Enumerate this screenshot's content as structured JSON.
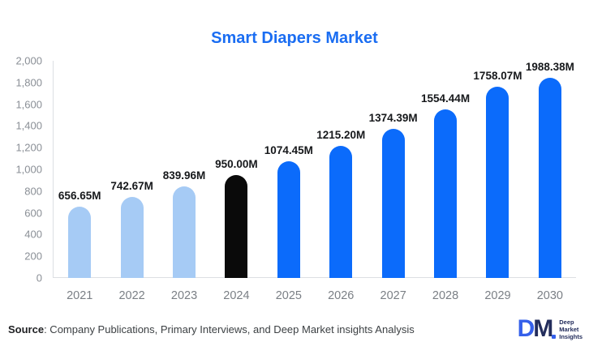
{
  "chart_data": {
    "type": "bar",
    "title": "Smart Diapers Market",
    "categories": [
      "2021",
      "2022",
      "2023",
      "2024",
      "2025",
      "2026",
      "2027",
      "2028",
      "2029",
      "2030"
    ],
    "values": [
      656.65,
      742.67,
      839.96,
      950.0,
      1074.45,
      1215.2,
      1374.39,
      1554.44,
      1758.07,
      1988.38
    ],
    "labels": [
      "656.65M",
      "742.67M",
      "839.96M",
      "950.00M",
      "1074.45M",
      "1215.20M",
      "1374.39M",
      "1554.44M",
      "1758.07M",
      "1988.38M"
    ],
    "bar_colors": [
      "#a6cbf5",
      "#a6cbf5",
      "#a6cbf5",
      "#0a0a0a",
      "#0b6bfb",
      "#0b6bfb",
      "#0b6bfb",
      "#0b6bfb",
      "#0b6bfb",
      "#0b6bfb"
    ],
    "xlabel": "",
    "ylabel": "",
    "ylim": [
      0,
      2000
    ],
    "ytick_step": 200,
    "ytick_labels": [
      "0",
      "200",
      "400",
      "600",
      "800",
      "1,000",
      "1,200",
      "1,400",
      "1,600",
      "1,800",
      "2,000"
    ],
    "grid": false,
    "legend": false
  },
  "colors": {
    "title": "#1a6df2",
    "historical_bar": "#a6cbf5",
    "base_year_bar": "#0a0a0a",
    "forecast_bar": "#0b6bfb",
    "axis_line": "#dcdfe3",
    "tick_label": "#8a8f96",
    "value_label": "#16181b",
    "logo_blue": "#3560ea",
    "logo_navy": "#232d5c"
  },
  "footer": {
    "source_label": "Source",
    "source_text": ": Company Publications, Primary Interviews, and Deep Market insights Analysis"
  },
  "logo": {
    "d_letter": "D",
    "m_letter": "M",
    "lines": [
      "Deep",
      "Market",
      "Insights"
    ]
  }
}
